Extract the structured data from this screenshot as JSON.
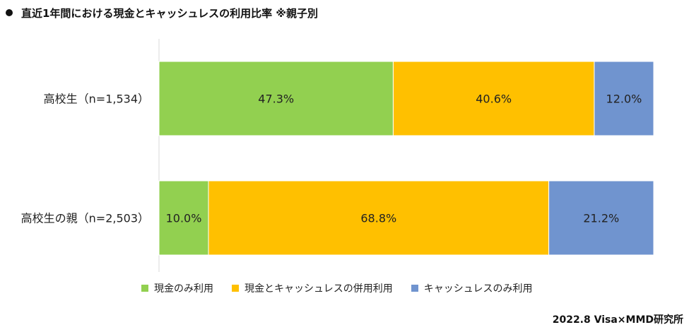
{
  "title": "直近1年間における現金とキャッシュレスの利用比率 ※親子別",
  "source": "2022.8 Visa×MMD研究所",
  "colors": {
    "cash_only": "#92d050",
    "both": "#ffc000",
    "cashless_only": "#7094cf"
  },
  "chart_data": {
    "type": "bar",
    "orientation": "horizontal",
    "stacked": true,
    "normalized": true,
    "title": "直近1年間における現金とキャッシュレスの利用比率 ※親子別",
    "categories": [
      "高校生（n=1,534）",
      "高校生の親（n=2,503）"
    ],
    "series": [
      {
        "name": "現金のみ利用",
        "values": [
          47.3,
          10.0
        ],
        "labels": [
          "47.3%",
          "10.0%"
        ],
        "color": "#92d050"
      },
      {
        "name": "現金とキャッシュレスの併用利用",
        "values": [
          40.6,
          68.8
        ],
        "labels": [
          "40.6%",
          "68.8%"
        ],
        "color": "#ffc000"
      },
      {
        "name": "キャッシュレスのみ利用",
        "values": [
          12.0,
          21.2
        ],
        "labels": [
          "12.0%",
          "21.2%"
        ],
        "color": "#7094cf"
      }
    ],
    "legend_position": "bottom",
    "grid": false
  }
}
